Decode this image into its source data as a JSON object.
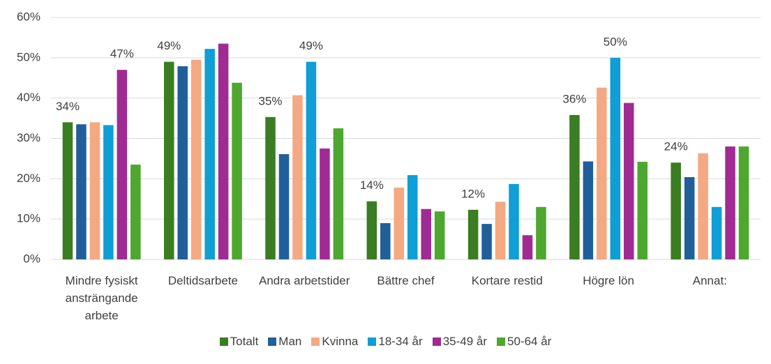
{
  "chart_data": {
    "type": "bar",
    "categories": [
      "Mindre fysiskt ansträngande arbete",
      "Deltidsarbete",
      "Andra arbetstider",
      "Bättre chef",
      "Kortare restid",
      "Högre lön",
      "Annat:"
    ],
    "series": [
      {
        "name": "Totalt",
        "color": "#3a7d22",
        "values": [
          34,
          49,
          35.3,
          14.4,
          12.3,
          35.8,
          24
        ],
        "value_labels": [
          "34%",
          "49%",
          "35%",
          "14%",
          "12%",
          "36%",
          "24%"
        ]
      },
      {
        "name": "Man",
        "color": "#215f9a",
        "values": [
          33.5,
          47.9,
          26.1,
          9,
          8.8,
          24.3,
          20.4
        ]
      },
      {
        "name": "Kvinna",
        "color": "#f4a982",
        "values": [
          34,
          49.5,
          40.7,
          17.8,
          14.3,
          42.6,
          26.3
        ]
      },
      {
        "name": "18-34 år",
        "color": "#0f9ed5",
        "values": [
          33.3,
          52.2,
          49,
          20.9,
          18.7,
          50,
          13
        ],
        "value_labels": [
          null,
          null,
          "49%",
          null,
          null,
          "50%",
          null
        ]
      },
      {
        "name": "35-49 år",
        "color": "#a02b93",
        "values": [
          47,
          53.5,
          27.5,
          12.5,
          6,
          38.8,
          28
        ],
        "value_labels": [
          null,
          "",
          null,
          null,
          null,
          null,
          null
        ]
      },
      {
        "name": "50-64 år",
        "color": "#4ea72e",
        "values": [
          23.5,
          43.8,
          32.5,
          11.9,
          13,
          24.2,
          28
        ]
      }
    ],
    "ylim": [
      0,
      60
    ],
    "yticks": [
      {
        "value": 0,
        "label": "0%"
      },
      {
        "value": 10,
        "label": "10%"
      },
      {
        "value": 20,
        "label": "20%"
      },
      {
        "value": 30,
        "label": "30%"
      },
      {
        "value": 40,
        "label": "40%"
      },
      {
        "value": 50,
        "label": "50%"
      },
      {
        "value": 60,
        "label": "60%"
      }
    ],
    "grid": true
  }
}
